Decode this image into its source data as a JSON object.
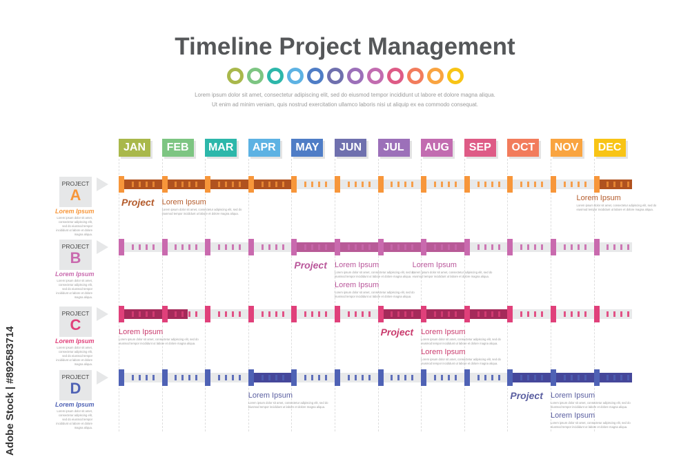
{
  "title": "Timeline Project Management",
  "subtitle_lines": [
    "Lorem ipsum dolor sit amet, consectetur adipiscing elit, sed do eiusmod tempor incididunt ut labore et dolore magna aliqua.",
    "Ut enim ad minim veniam, quis nostrud exercitation ullamco laboris nisi ut aliquip ex ea commodo consequat."
  ],
  "watermark": "Adobe Stock | #892583714",
  "months": [
    {
      "label": "JAN",
      "color": "#a9b84b"
    },
    {
      "label": "FEB",
      "color": "#7dc582"
    },
    {
      "label": "MAR",
      "color": "#2db7aa"
    },
    {
      "label": "APR",
      "color": "#5db2e3"
    },
    {
      "label": "MAY",
      "color": "#4f7dc6"
    },
    {
      "label": "JUN",
      "color": "#6f70ae"
    },
    {
      "label": "JUL",
      "color": "#9c70b9"
    },
    {
      "label": "AUG",
      "color": "#c26cb0"
    },
    {
      "label": "SEP",
      "color": "#de5b86"
    },
    {
      "label": "OCT",
      "color": "#f27c5c"
    },
    {
      "label": "NOV",
      "color": "#f9a440"
    },
    {
      "label": "DEC",
      "color": "#f8c416"
    }
  ],
  "desc_text": "Lorem ipsum dolor sit amet, consectetur adipiscing elit, sed do eiusmod tempor incididunt ut labore et dolore magna aliqua.",
  "projects": [
    {
      "prefix": "PROJECT",
      "letter": "A",
      "name": "Lorem Ipsum",
      "cap": "#f7963a",
      "active": "#b0521f",
      "text": "#b35a2a",
      "active_months": [
        [
          0,
          4
        ],
        [
          11,
          12
        ]
      ],
      "annotations": [
        {
          "type": "project",
          "text": "Project",
          "month": 0,
          "line": 0
        },
        {
          "type": "item",
          "text": "Lorem Ipsum",
          "month": 1,
          "line": 0
        },
        {
          "type": "item",
          "text": "Lorem Ipsum",
          "month": 10.6,
          "line": -0.2
        }
      ]
    },
    {
      "prefix": "PROJECT",
      "letter": "B",
      "name": "Lorem Ipsum",
      "cap": "#c96aae",
      "active": "#b85a97",
      "text": "#b9569a",
      "active_months": [
        [
          4,
          8
        ]
      ],
      "annotations": [
        {
          "type": "project",
          "text": "Project",
          "month": 4,
          "line": 0
        },
        {
          "type": "item",
          "text": "Lorem Ipsum",
          "month": 5,
          "line": 0
        },
        {
          "type": "item",
          "text": "Lorem Ipsum",
          "month": 5,
          "line": 1
        },
        {
          "type": "item",
          "text": "Lorem Ipsum",
          "month": 6.8,
          "line": 0
        }
      ]
    },
    {
      "prefix": "PROJECT",
      "letter": "C",
      "name": "Lorem Ipsum",
      "cap": "#e0407a",
      "active": "#a52a5a",
      "text": "#c93a6c",
      "active_months": [
        [
          0,
          1.6
        ],
        [
          6,
          9
        ]
      ],
      "annotations": [
        {
          "type": "item",
          "text": "Lorem Ipsum",
          "month": 0,
          "line": 0
        },
        {
          "type": "project",
          "text": "Project",
          "month": 6,
          "line": 0
        },
        {
          "type": "item",
          "text": "Lorem Ipsum",
          "month": 7,
          "line": 0
        },
        {
          "type": "item",
          "text": "Lorem Ipsum",
          "month": 7,
          "line": 1
        }
      ]
    },
    {
      "prefix": "PROJECT",
      "letter": "D",
      "name": "Lorem Ipsum",
      "cap": "#4f62b5",
      "active": "#45479a",
      "text": "#5a5ea0",
      "active_months": [
        [
          3,
          4
        ],
        [
          9,
          12
        ]
      ],
      "annotations": [
        {
          "type": "item",
          "text": "Lorem Ipsum",
          "month": 3,
          "line": 0
        },
        {
          "type": "project",
          "text": "Project",
          "month": 9,
          "line": 0
        },
        {
          "type": "item",
          "text": "Lorem Ipsum",
          "month": 10,
          "line": 0
        },
        {
          "type": "item",
          "text": "Lorem Ipsum",
          "month": 10,
          "line": 1
        }
      ]
    }
  ]
}
